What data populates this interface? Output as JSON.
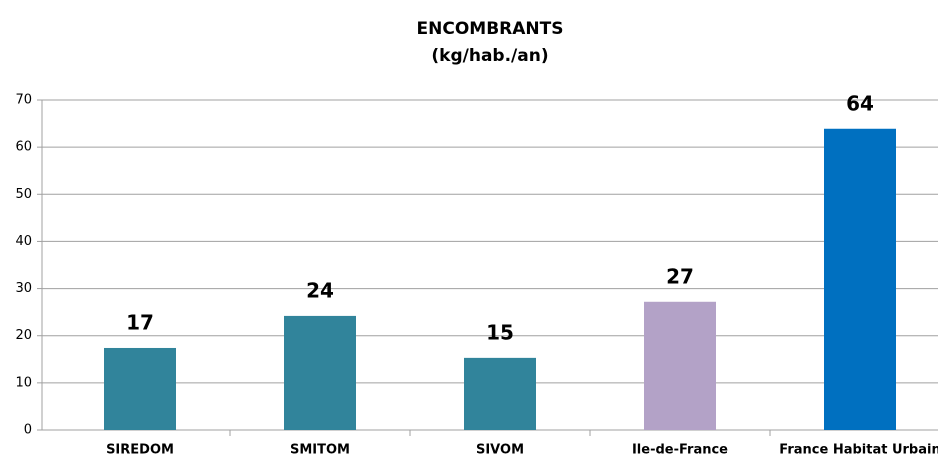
{
  "chart_data": {
    "type": "bar",
    "title": "ENCOMBRANTS",
    "subtitle": "(kg/hab./an)",
    "categories": [
      "SIREDOM",
      "SMITOM",
      "SIVOM",
      "Ile-de-France",
      "France Habitat Urbain"
    ],
    "values": [
      17.4,
      24.2,
      15.3,
      27.2,
      63.9
    ],
    "value_labels": [
      "17",
      "24",
      "15",
      "27",
      "64"
    ],
    "colors": [
      "#31849b",
      "#31849b",
      "#31849b",
      "#b3a2c7",
      "#0070c0"
    ],
    "ylim": [
      0,
      70
    ],
    "yticks": [
      0,
      10,
      20,
      30,
      40,
      50,
      60,
      70
    ],
    "grid": true
  }
}
